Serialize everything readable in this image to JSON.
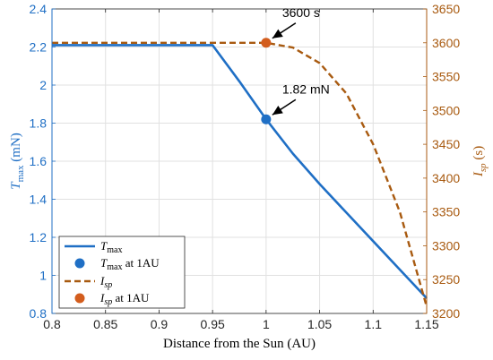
{
  "chart_data": {
    "type": "line",
    "xlabel": "Distance from the Sun (AU)",
    "xlim": [
      0.8,
      1.15
    ],
    "xticks": [
      0.8,
      0.85,
      0.9,
      0.95,
      1,
      1.05,
      1.1,
      1.15
    ],
    "left_axis": {
      "label": "T",
      "label_sub": "max",
      "label_unit": " (mN)",
      "color": "#1f6fc5",
      "ylim": [
        0.8,
        2.4
      ],
      "ticks": [
        0.8,
        1,
        1.2,
        1.4,
        1.6,
        1.8,
        2,
        2.2,
        2.4
      ]
    },
    "right_axis": {
      "label": "I",
      "label_sub": "sp",
      "label_unit": " (s)",
      "color": "#a85a10",
      "ylim": [
        3200,
        3650
      ],
      "ticks": [
        3200,
        3250,
        3300,
        3350,
        3400,
        3450,
        3500,
        3550,
        3600,
        3650
      ]
    },
    "series": [
      {
        "name": "T_max",
        "axis": "left",
        "style": "solid",
        "color": "#1f6fc5",
        "x": [
          0.8,
          0.95,
          0.975,
          1.0,
          1.025,
          1.05,
          1.075,
          1.1,
          1.125,
          1.15
        ],
        "y": [
          2.21,
          2.21,
          2.02,
          1.82,
          1.64,
          1.48,
          1.33,
          1.18,
          1.03,
          0.88
        ]
      },
      {
        "name": "I_sp",
        "axis": "right",
        "style": "dashed",
        "color": "#a85a10",
        "x": [
          0.8,
          0.95,
          0.975,
          1.0,
          1.025,
          1.05,
          1.075,
          1.1,
          1.125,
          1.15
        ],
        "y": [
          3600,
          3600,
          3600,
          3600,
          3593,
          3570,
          3525,
          3450,
          3350,
          3210
        ]
      }
    ],
    "points": [
      {
        "name": "T_max at 1AU",
        "axis": "left",
        "x": 1.0,
        "y": 1.82,
        "color": "#1f6fc5"
      },
      {
        "name": "I_sp at 1AU",
        "axis": "right",
        "x": 1.0,
        "y": 3600,
        "color": "#d35d1d"
      }
    ],
    "annotations": [
      {
        "text": "3600 s",
        "axis": "right",
        "x": 1.0,
        "y": 3600
      },
      {
        "text": "1.82 mN",
        "axis": "left",
        "x": 1.0,
        "y": 1.82
      }
    ],
    "legend": {
      "placement": "bottom-left",
      "entries": [
        {
          "main": "T",
          "sub": "max",
          "suffix": ""
        },
        {
          "main": "T",
          "sub": "max",
          "suffix": " at 1AU"
        },
        {
          "main": "I",
          "sub": "sp",
          "suffix": ""
        },
        {
          "main": "I",
          "sub": "sp",
          "suffix": " at 1AU"
        }
      ]
    },
    "grid": true
  }
}
